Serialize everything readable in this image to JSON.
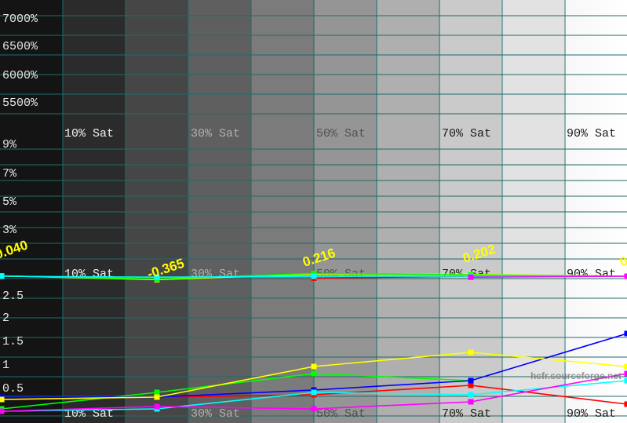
{
  "watermark": "hcfr.sourceforge.net",
  "colors": {
    "grid": "#1f6b6b",
    "text": "#222222",
    "overlay_label": "#ffff00",
    "red": "#ff0000",
    "green": "#00ff00",
    "blue": "#0000ff",
    "yellow": "#ffff00",
    "cyan": "#00ffff",
    "magenta": "#ff00ff"
  },
  "chart_data": [
    {
      "type": "line",
      "panel": "top",
      "title": "",
      "y_tick_labels": [
        "7000%",
        "6500%",
        "6000%",
        "5500%"
      ],
      "x_tick_labels": [
        "10% Sat",
        "30% Sat",
        "50% Sat",
        "70% Sat",
        "90% Sat"
      ],
      "grid": true
    },
    {
      "type": "line",
      "panel": "middle",
      "title": "",
      "y_tick_labels": [
        "9%",
        "7%",
        "5%",
        "3%"
      ],
      "x_tick_labels": [
        "10% Sat",
        "30% Sat",
        "50% Sat",
        "70% Sat",
        "90% Sat"
      ],
      "x": [
        0,
        25,
        50,
        75,
        100
      ],
      "grid": true,
      "point_labels": [
        "0.040",
        "-0.365",
        "0.216",
        "0.202",
        "0"
      ],
      "series": [
        {
          "color": "yellow",
          "values": [
            0.04,
            -0.365,
            0.216,
            0.202,
            0.0
          ]
        },
        {
          "color": "green",
          "values": [
            0.04,
            -0.3,
            0.3,
            0.15,
            0.0
          ]
        },
        {
          "color": "red",
          "values": [
            null,
            null,
            -0.2,
            0.0,
            0.0
          ]
        },
        {
          "color": "cyan",
          "values": [
            0.0,
            -0.1,
            0.0,
            0.0,
            0.0
          ]
        },
        {
          "color": "magenta",
          "values": [
            null,
            null,
            null,
            -0.1,
            0.0
          ]
        }
      ]
    },
    {
      "type": "line",
      "panel": "bottom",
      "title": "",
      "y_tick_labels": [
        "2.5",
        "2",
        "1.5",
        "1",
        "0.5"
      ],
      "x_tick_labels": [
        "10% Sat",
        "30% Sat",
        "50% Sat",
        "70% Sat",
        "90% Sat"
      ],
      "x": [
        0,
        25,
        50,
        75,
        100
      ],
      "ylim": [
        0,
        3
      ],
      "grid": true,
      "series": [
        {
          "color": "red",
          "values": [
            0.3,
            0.35,
            0.4,
            0.6,
            0.2
          ]
        },
        {
          "color": "green",
          "values": [
            0.1,
            0.45,
            0.85,
            0.7,
            null
          ]
        },
        {
          "color": "blue",
          "values": [
            0.35,
            0.35,
            0.5,
            0.7,
            1.7
          ]
        },
        {
          "color": "yellow",
          "values": [
            0.3,
            0.35,
            1.0,
            1.3,
            1.0
          ]
        },
        {
          "color": "cyan",
          "values": [
            0.05,
            0.1,
            0.45,
            0.4,
            0.7
          ]
        },
        {
          "color": "magenta",
          "values": [
            0.05,
            0.15,
            0.1,
            0.25,
            0.85
          ]
        }
      ]
    }
  ]
}
